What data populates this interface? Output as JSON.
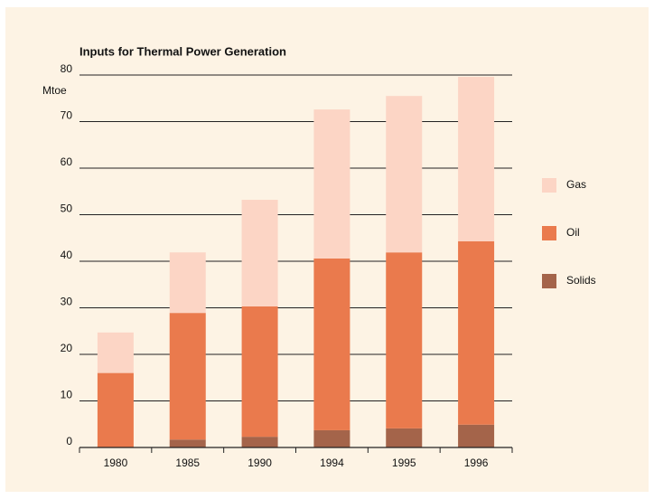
{
  "chart_data": {
    "type": "stacked-bar",
    "title": "Inputs for Thermal Power Generation",
    "ylabel": "Mtoe",
    "categories": [
      "1980",
      "1985",
      "1990",
      "1994",
      "1995",
      "1996"
    ],
    "series": [
      {
        "name": "Solids",
        "color": "#a4644a",
        "values": [
          0,
          1.7,
          2.3,
          3.7,
          4.1,
          4.9
        ]
      },
      {
        "name": "Oil",
        "color": "#ea7a4d",
        "values": [
          16,
          27.2,
          28,
          36.9,
          37.8,
          39.4
        ]
      },
      {
        "name": "Gas",
        "color": "#fcd5c5",
        "values": [
          8.7,
          13,
          22.9,
          32,
          33.6,
          35.3
        ]
      }
    ],
    "ylim": [
      0,
      80
    ],
    "yticks": [
      0,
      10,
      20,
      30,
      40,
      50,
      60,
      70,
      80
    ],
    "grid": true,
    "legend": "right"
  }
}
